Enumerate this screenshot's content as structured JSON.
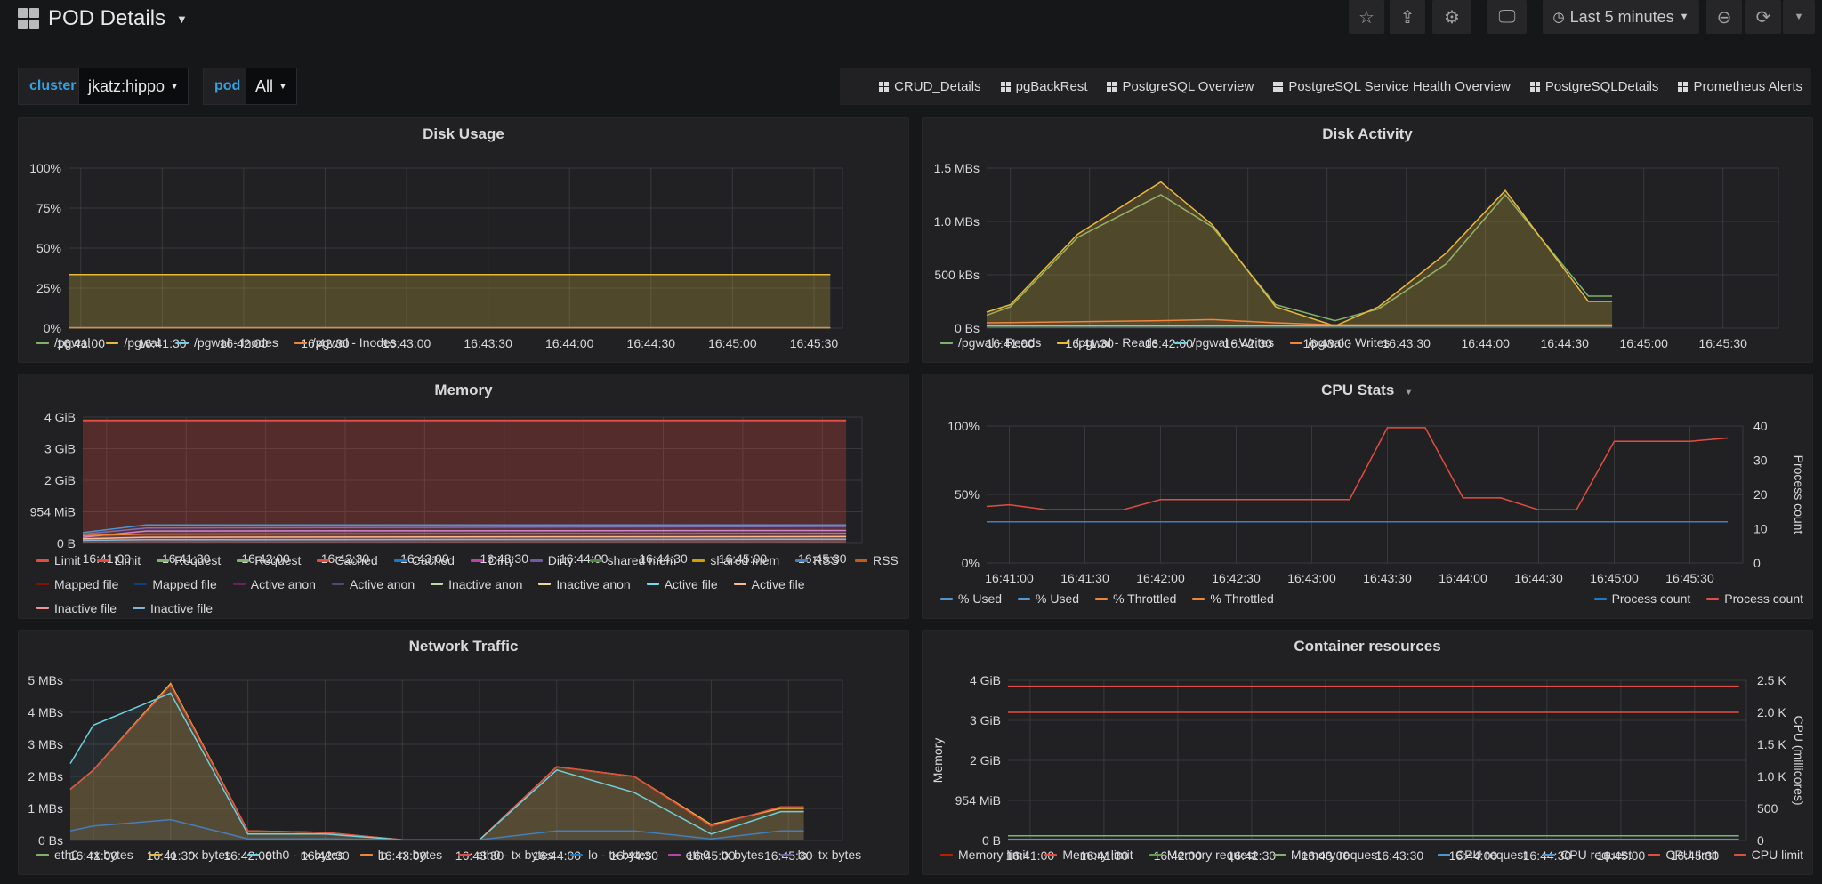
{
  "header": {
    "title": "POD Details",
    "time_range": "Last 5 minutes"
  },
  "variables": [
    {
      "label": "cluster",
      "value": "jkatz:hippo"
    },
    {
      "label": "pod",
      "value": "All"
    }
  ],
  "links": [
    "CRUD_Details",
    "pgBackRest",
    "PostgreSQL Overview",
    "PostgreSQL Service Health Overview",
    "PostgreSQLDetails",
    "Prometheus Alerts"
  ],
  "colors": {
    "bg": "#161719",
    "panel": "#212124",
    "grid": "#3a3b3e"
  },
  "chart_data": [
    {
      "id": "disk-usage",
      "type": "area",
      "title": "Disk Usage",
      "x_ticks": [
        "16:41:00",
        "16:41:30",
        "16:42:00",
        "16:42:30",
        "16:43:00",
        "16:43:30",
        "16:44:00",
        "16:44:30",
        "16:45:00",
        "16:45:30"
      ],
      "y_ticks": [
        "100%",
        "75%",
        "50%",
        "25%",
        "0%"
      ],
      "ylim": [
        0,
        100
      ],
      "x_range": [
        -0.15,
        9.35
      ],
      "x_data_end": 9.2,
      "series": [
        {
          "name": "/pgwal",
          "color": "#7eb26d",
          "values": [
            33.5,
            33.5
          ]
        },
        {
          "name": "/pgwal",
          "color": "#eab839",
          "values": [
            33.5,
            33.5
          ],
          "fill": true
        },
        {
          "name": "/pgwal - Inodes",
          "color": "#6ed0e0",
          "values": [
            0.2,
            0.2
          ]
        },
        {
          "name": "/pgwal - Inodes",
          "color": "#ef843c",
          "values": [
            0.2,
            0.2
          ]
        }
      ]
    },
    {
      "id": "disk-activity",
      "type": "area",
      "title": "Disk Activity",
      "x_ticks": [
        "16:41:00",
        "16:41:30",
        "16:42:00",
        "16:42:30",
        "16:43:00",
        "16:43:30",
        "16:44:00",
        "16:44:30",
        "16:45:00",
        "16:45:30"
      ],
      "y_ticks": [
        "1.5 MBs",
        "1.0 MBs",
        "500 kBs",
        "0 Bs"
      ],
      "ylim": [
        0,
        1.5
      ],
      "x_range": [
        -0.3,
        9.7
      ],
      "series": [
        {
          "name": "/pgwal - Reads",
          "color": "#7eb26d",
          "x": [
            -0.3,
            0,
            0.85,
            1.9,
            2.55,
            3.35,
            4.1,
            4.65,
            5.5,
            6.25,
            7.3,
            7.6
          ],
          "values": [
            0.12,
            0.2,
            0.85,
            1.25,
            0.95,
            0.22,
            0.07,
            0.18,
            0.6,
            1.25,
            0.3,
            0.3
          ]
        },
        {
          "name": "/pgwal - Reads",
          "color": "#eab839",
          "x": [
            -0.3,
            0,
            0.85,
            1.9,
            2.55,
            3.35,
            4.1,
            4.65,
            5.5,
            6.25,
            7.3,
            7.6
          ],
          "values": [
            0.15,
            0.22,
            0.88,
            1.37,
            0.97,
            0.2,
            0.02,
            0.2,
            0.7,
            1.29,
            0.25,
            0.25
          ],
          "fill": true
        },
        {
          "name": "/pgwal - Writes",
          "color": "#6ed0e0",
          "x": [
            -0.3,
            7.6
          ],
          "values": [
            0.02,
            0.02
          ]
        },
        {
          "name": "/pgwal - Writes",
          "color": "#ef843c",
          "x": [
            -0.3,
            1.9,
            2.55,
            3.35,
            4.1,
            4.65,
            7.3,
            7.6
          ],
          "values": [
            0.05,
            0.07,
            0.08,
            0.05,
            0.03,
            0.03,
            0.03,
            0.03
          ]
        }
      ]
    },
    {
      "id": "memory",
      "type": "area",
      "title": "Memory",
      "x_ticks": [
        "16:41:00",
        "16:41:30",
        "16:42:00",
        "16:42:30",
        "16:43:00",
        "16:43:30",
        "16:44:00",
        "16:44:30",
        "16:45:00",
        "16:45:30"
      ],
      "y_ticks": [
        "4 GiB",
        "3 GiB",
        "2 GiB",
        "954 MiB",
        "0 B"
      ],
      "ylim": [
        0,
        4.1
      ],
      "x_range": [
        -0.3,
        9.5
      ],
      "series": [
        {
          "name": "Limit",
          "color": "#e24d42",
          "x": [
            -0.3,
            9.3
          ],
          "values": [
            4.0,
            4.0
          ],
          "fill": true
        },
        {
          "name": "Limit",
          "color": "#e24d42",
          "x": [
            -0.3,
            9.3
          ],
          "values": [
            3.95,
            3.95
          ]
        },
        {
          "name": "RSS",
          "color": "#5195ce",
          "x": [
            -0.3,
            0.5,
            9.3
          ],
          "values": [
            0.35,
            0.6,
            0.6
          ]
        },
        {
          "name": "Active anon",
          "color": "#806eb7",
          "x": [
            -0.3,
            0.5,
            9.3
          ],
          "values": [
            0.3,
            0.5,
            0.55
          ]
        },
        {
          "name": "Inactive anon",
          "color": "#d683ce",
          "x": [
            -0.3,
            0.5,
            9.3
          ],
          "values": [
            0.2,
            0.4,
            0.42
          ]
        },
        {
          "name": "Cached",
          "color": "#ef843c",
          "x": [
            -0.3,
            0.5,
            9.3
          ],
          "values": [
            0.25,
            0.3,
            0.32
          ]
        },
        {
          "name": "Active file",
          "color": "#f9ba8f",
          "x": [
            -0.3,
            0.5,
            9.3
          ],
          "values": [
            0.15,
            0.2,
            0.22
          ]
        },
        {
          "name": "Inactive file",
          "color": "#82b5d8",
          "x": [
            -0.3,
            0.5,
            9.3
          ],
          "values": [
            0.1,
            0.12,
            0.14
          ]
        }
      ],
      "legend": [
        {
          "name": "Limit",
          "color": "#e24d42"
        },
        {
          "name": "Limit",
          "color": "#e24d42"
        },
        {
          "name": "Request",
          "color": "#7eb26d"
        },
        {
          "name": "Request",
          "color": "#7eb26d"
        },
        {
          "name": "Cached",
          "color": "#e24d42"
        },
        {
          "name": "Cached",
          "color": "#1f78c1"
        },
        {
          "name": "Dirty",
          "color": "#ba43a9"
        },
        {
          "name": "Dirty",
          "color": "#705da0"
        },
        {
          "name": "shared mem",
          "color": "#508642"
        },
        {
          "name": "shared mem",
          "color": "#cca300"
        },
        {
          "name": "RSS",
          "color": "#447ebc"
        },
        {
          "name": "RSS",
          "color": "#c15c17"
        },
        {
          "name": "Mapped file",
          "color": "#890f02"
        },
        {
          "name": "Mapped file",
          "color": "#0a437c"
        },
        {
          "name": "Active anon",
          "color": "#6d1f62"
        },
        {
          "name": "Active anon",
          "color": "#584477"
        },
        {
          "name": "Inactive anon",
          "color": "#b7dbab"
        },
        {
          "name": "Inactive anon",
          "color": "#f4d598"
        },
        {
          "name": "Active file",
          "color": "#70dbed"
        },
        {
          "name": "Active file",
          "color": "#f9ba8f"
        },
        {
          "name": "Inactive file",
          "color": "#f29191"
        },
        {
          "name": "Inactive file",
          "color": "#82b5d8"
        }
      ]
    },
    {
      "id": "cpu-stats",
      "type": "line",
      "title": "CPU Stats",
      "x_ticks": [
        "16:41:00",
        "16:41:30",
        "16:42:00",
        "16:42:30",
        "16:43:00",
        "16:43:30",
        "16:44:00",
        "16:44:30",
        "16:45:00",
        "16:45:30"
      ],
      "y_ticks": [
        "100%",
        "50%",
        "0%"
      ],
      "y2_ticks": [
        "40",
        "30",
        "20",
        "10",
        "0"
      ],
      "y2_label": "Process count",
      "ylim": [
        0,
        1.1
      ],
      "y2lim": [
        0,
        40
      ],
      "x_range": [
        -0.3,
        9.7
      ],
      "series": [
        {
          "name": "% Used",
          "color": "#447ebc",
          "x": [
            -0.3,
            9.5
          ],
          "values": [
            0.33,
            0.33
          ]
        },
        {
          "name": "Process count",
          "color": "#e24d42",
          "axis": "y2",
          "x": [
            -0.3,
            0,
            0.5,
            1,
            1.5,
            2,
            3,
            4,
            4.5,
            5,
            5.5,
            6,
            6.5,
            7,
            7.5,
            8,
            8.5,
            9,
            9.5
          ],
          "values": [
            16.5,
            17,
            15.5,
            15.5,
            15.5,
            18.5,
            18.5,
            18.5,
            18.5,
            39.5,
            39.5,
            19,
            19,
            15.5,
            15.5,
            35.5,
            35.5,
            35.5,
            36.5
          ]
        }
      ],
      "legend": [
        {
          "name": "% Used",
          "color": "#5195ce"
        },
        {
          "name": "% Used",
          "color": "#5195ce"
        },
        {
          "name": "% Throttled",
          "color": "#ef843c"
        },
        {
          "name": "% Throttled",
          "color": "#ef843c"
        }
      ],
      "legend_right": [
        {
          "name": "Process count",
          "color": "#1f78c1"
        },
        {
          "name": "Process count",
          "color": "#e24d42"
        }
      ]
    },
    {
      "id": "network-traffic",
      "type": "area",
      "title": "Network Traffic",
      "x_ticks": [
        "16:41:00",
        "16:41:30",
        "16:42:00",
        "16:42:30",
        "16:43:00",
        "16:43:30",
        "16:44:00",
        "16:44:30",
        "16:45:00",
        "16:45:30"
      ],
      "y_ticks": [
        "5 MBs",
        "4 MBs",
        "3 MBs",
        "2 MBs",
        "1 MBs",
        "0 Bs"
      ],
      "ylim": [
        0,
        5
      ],
      "x_range": [
        -0.3,
        9.7
      ],
      "series": [
        {
          "name": "lo - rx bytes",
          "color": "#eab839",
          "x": [
            -0.3,
            0,
            1,
            2,
            3,
            4,
            5,
            6,
            7,
            8,
            8.9,
            9.2
          ],
          "values": [
            1.6,
            2.2,
            4.9,
            0.3,
            0.25,
            0.02,
            0.02,
            2.3,
            2.0,
            0.5,
            1.0,
            1.0
          ],
          "fill": true
        },
        {
          "name": "eth0 - tx bytes",
          "color": "#e24d42",
          "x": [
            -0.3,
            0,
            1,
            2,
            3,
            4,
            5,
            6,
            7,
            8,
            8.9,
            9.2
          ],
          "values": [
            1.6,
            2.2,
            4.85,
            0.3,
            0.25,
            0.02,
            0.02,
            2.3,
            2.0,
            0.45,
            1.05,
            1.05
          ]
        },
        {
          "name": "eth0 - rx bytes",
          "color": "#6ed0e0",
          "x": [
            -0.3,
            0,
            1,
            2,
            3,
            4,
            5,
            6,
            7,
            8,
            8.9,
            9.2
          ],
          "values": [
            2.4,
            3.6,
            4.6,
            0.2,
            0.2,
            0.02,
            0.02,
            2.2,
            1.5,
            0.2,
            0.9,
            0.9
          ]
        },
        {
          "name": "lo - tx bytes",
          "color": "#447ebc",
          "x": [
            -0.3,
            0,
            1,
            2,
            3,
            4,
            5,
            6,
            7,
            8,
            8.9,
            9.2
          ],
          "values": [
            0.3,
            0.45,
            0.65,
            0.05,
            0.05,
            0.02,
            0.02,
            0.3,
            0.3,
            0.05,
            0.3,
            0.3
          ]
        }
      ],
      "legend": [
        {
          "name": "eth0 - rx bytes",
          "color": "#7eb26d"
        },
        {
          "name": "lo - rx bytes",
          "color": "#eab839"
        },
        {
          "name": "eth0 - rx bytes",
          "color": "#6ed0e0"
        },
        {
          "name": "lo - rx bytes",
          "color": "#ef843c"
        },
        {
          "name": "eth0 - tx bytes",
          "color": "#e24d42"
        },
        {
          "name": "lo - tx bytes",
          "color": "#1f78c1"
        },
        {
          "name": "eth0 - tx bytes",
          "color": "#ba43a9"
        },
        {
          "name": "lo - tx bytes",
          "color": "#705da0"
        }
      ]
    },
    {
      "id": "container-resources",
      "type": "line",
      "title": "Container resources",
      "x_ticks": [
        "16:41:00",
        "16:41:30",
        "16:42:00",
        "16:42:30",
        "16:43:00",
        "16:43:30",
        "16:44:00",
        "16:44:30",
        "16:45:00",
        "16:45:30"
      ],
      "y_ticks": [
        "4 GiB",
        "3 GiB",
        "2 GiB",
        "954 MiB",
        "0 B"
      ],
      "y_label": "Memory",
      "y2_ticks": [
        "2.5 K",
        "2.0 K",
        "1.5 K",
        "1.0 K",
        "500",
        "0"
      ],
      "y2_label": "CPU (millicores)",
      "ylim": [
        0,
        4.1
      ],
      "y2lim": [
        0,
        2500
      ],
      "x_range": [
        -0.3,
        9.7
      ],
      "series": [
        {
          "name": "Memory limit",
          "color": "#e24d42",
          "x": [
            -0.3,
            9.6
          ],
          "values": [
            3.95,
            3.95
          ]
        },
        {
          "name": "Memory request",
          "color": "#7eb26d",
          "x": [
            -0.3,
            9.6
          ],
          "values": [
            0.12,
            0.12
          ]
        },
        {
          "name": "CPU limit",
          "color": "#e24d42",
          "axis": "y2",
          "x": [
            -0.3,
            9.6
          ],
          "values": [
            2000,
            2000
          ]
        },
        {
          "name": "CPU request",
          "color": "#5195ce",
          "axis": "y2",
          "x": [
            -0.3,
            9.6
          ],
          "values": [
            20,
            20
          ]
        }
      ],
      "legend": [
        {
          "name": "Memory limit",
          "color": "#bf1b00"
        },
        {
          "name": "Memory limit",
          "color": "#e24d42"
        },
        {
          "name": "Memory request",
          "color": "#629e51"
        },
        {
          "name": "Memory request",
          "color": "#7eb26d"
        }
      ],
      "legend_right": [
        {
          "name": "CPU request",
          "color": "#5195ce"
        },
        {
          "name": "CPU request",
          "color": "#5195ce"
        },
        {
          "name": "CPU limit",
          "color": "#e24d42"
        },
        {
          "name": "CPU limit",
          "color": "#e24d42"
        }
      ]
    }
  ]
}
